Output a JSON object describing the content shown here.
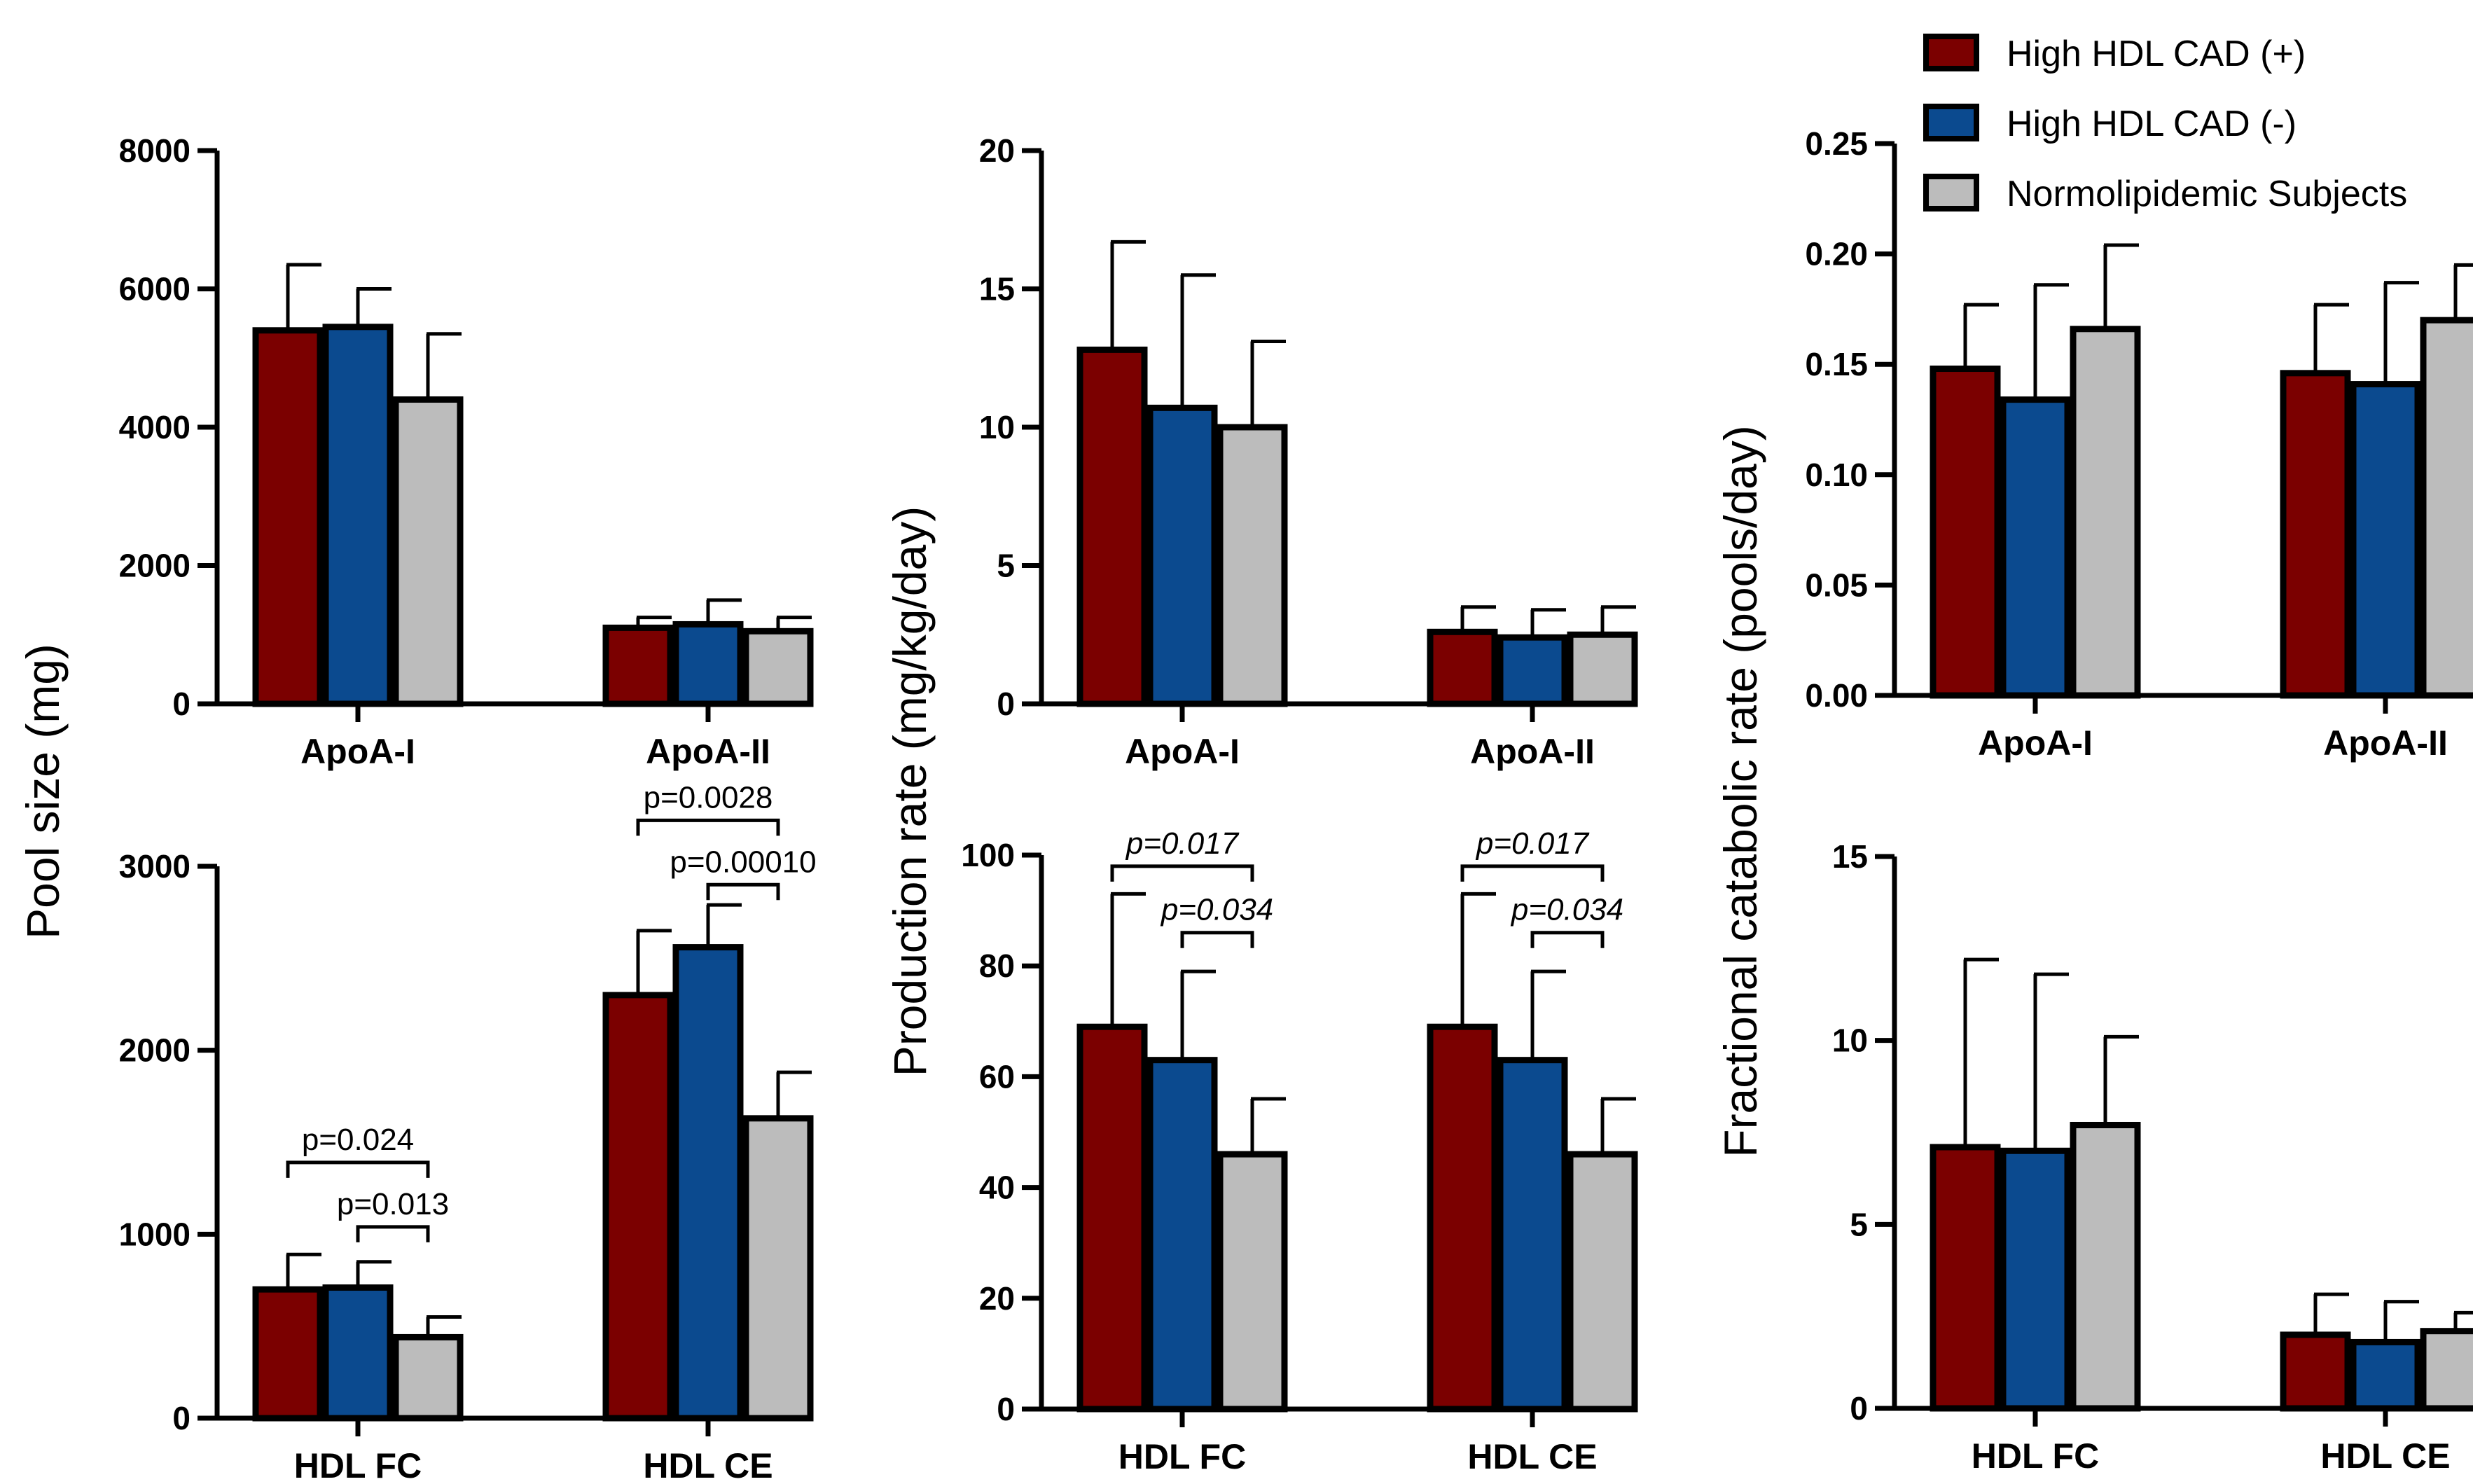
{
  "legend": [
    {
      "label": "High HDL CAD (+)",
      "color": "#7b0000"
    },
    {
      "label": "High HDL CAD (-)",
      "color": "#0b4a8f"
    },
    {
      "label": "Normolipidemic Subjects",
      "color": "#bcbcbc"
    }
  ],
  "y_labels": {
    "pool": "Pool size (mg)",
    "production": "Production rate (mg/kg/day)",
    "fcr": "Fractional catabolic rate (pools/day)"
  },
  "chart_data": [
    {
      "id": "pool-apo",
      "type": "bar",
      "title": "",
      "ylabel": "Pool size (mg)",
      "categories": [
        "ApoA-I",
        "ApoA-II"
      ],
      "ylim": [
        0,
        8000
      ],
      "yticks": [
        0,
        2000,
        4000,
        6000,
        8000
      ],
      "ytick_labels": [
        "0",
        "2000",
        "4000",
        "6000",
        "8000"
      ],
      "series": [
        {
          "name": "High HDL CAD (+)",
          "values": [
            5400,
            1100
          ],
          "errors": [
            950,
            150
          ]
        },
        {
          "name": "High HDL CAD (-)",
          "values": [
            5450,
            1150
          ],
          "errors": [
            550,
            350
          ]
        },
        {
          "name": "Normolipidemic Subjects",
          "values": [
            4400,
            1050
          ],
          "errors": [
            950,
            200
          ]
        }
      ],
      "annotations": []
    },
    {
      "id": "pool-hdl",
      "type": "bar",
      "title": "",
      "ylabel": "Pool size (mg)",
      "categories": [
        "HDL FC",
        "HDL CE"
      ],
      "ylim": [
        0,
        3000
      ],
      "yticks": [
        0,
        1000,
        2000,
        3000
      ],
      "ytick_labels": [
        "0",
        "1000",
        "2000",
        "3000"
      ],
      "series": [
        {
          "name": "High HDL CAD (+)",
          "values": [
            700,
            2300
          ],
          "errors": [
            190,
            350
          ]
        },
        {
          "name": "High HDL CAD (-)",
          "values": [
            710,
            2560
          ],
          "errors": [
            140,
            230
          ]
        },
        {
          "name": "Normolipidemic Subjects",
          "values": [
            440,
            1630
          ],
          "errors": [
            110,
            250
          ]
        }
      ],
      "annotations": [
        {
          "text": "p=0.024",
          "category": 0,
          "from": 0,
          "to": 2,
          "y": 1390,
          "italic": false
        },
        {
          "text": "p=0.013",
          "category": 0,
          "from": 1,
          "to": 2,
          "y": 1040,
          "italic": false
        },
        {
          "text": "p=0.0028",
          "category": 1,
          "from": 0,
          "to": 2,
          "y": 3250,
          "italic": false
        },
        {
          "text": "p=0.00010",
          "category": 1,
          "from": 1,
          "to": 2,
          "y": 2900,
          "italic": false
        }
      ]
    },
    {
      "id": "prod-apo",
      "type": "bar",
      "title": "",
      "ylabel": "Production rate (mg/kg/day)",
      "categories": [
        "ApoA-I",
        "ApoA-II"
      ],
      "ylim": [
        0,
        20
      ],
      "yticks": [
        0,
        5,
        10,
        15,
        20
      ],
      "ytick_labels": [
        "0",
        "5",
        "10",
        "15",
        "20"
      ],
      "series": [
        {
          "name": "High HDL CAD (+)",
          "values": [
            12.8,
            2.6
          ],
          "errors": [
            3.9,
            0.9
          ]
        },
        {
          "name": "High HDL CAD (-)",
          "values": [
            10.7,
            2.4
          ],
          "errors": [
            4.8,
            1.0
          ]
        },
        {
          "name": "Normolipidemic Subjects",
          "values": [
            10.0,
            2.5
          ],
          "errors": [
            3.1,
            1.0
          ]
        }
      ],
      "annotations": []
    },
    {
      "id": "prod-hdl",
      "type": "bar",
      "title": "",
      "ylabel": "Production rate (mg/kg/day)",
      "categories": [
        "HDL FC",
        "HDL CE"
      ],
      "ylim": [
        0,
        100
      ],
      "yticks": [
        0,
        20,
        40,
        60,
        80,
        100
      ],
      "ytick_labels": [
        "0",
        "20",
        "40",
        "60",
        "80",
        "100"
      ],
      "series": [
        {
          "name": "High HDL CAD (+)",
          "values": [
            69,
            69
          ],
          "errors": [
            24,
            24
          ]
        },
        {
          "name": "High HDL CAD (-)",
          "values": [
            63,
            63
          ],
          "errors": [
            16,
            16
          ]
        },
        {
          "name": "Normolipidemic Subjects",
          "values": [
            46,
            46
          ],
          "errors": [
            10,
            10
          ]
        }
      ],
      "annotations": [
        {
          "text": "p=0.017",
          "category": 0,
          "from": 0,
          "to": 2,
          "y": 98,
          "italic": true
        },
        {
          "text": "p=0.034",
          "category": 0,
          "from": 1,
          "to": 2,
          "y": 86,
          "italic": true
        },
        {
          "text": "p=0.017",
          "category": 1,
          "from": 0,
          "to": 2,
          "y": 98,
          "italic": true
        },
        {
          "text": "p=0.034",
          "category": 1,
          "from": 1,
          "to": 2,
          "y": 86,
          "italic": true
        }
      ]
    },
    {
      "id": "fcr-apo",
      "type": "bar",
      "title": "",
      "ylabel": "Fractional catabolic rate (pools/day)",
      "categories": [
        "ApoA-I",
        "ApoA-II"
      ],
      "ylim": [
        0,
        0.25
      ],
      "yticks": [
        0,
        0.05,
        0.1,
        0.15,
        0.2,
        0.25
      ],
      "ytick_labels": [
        "0.00",
        "0.05",
        "0.10",
        "0.15",
        "0.20",
        "0.25"
      ],
      "series": [
        {
          "name": "High HDL CAD (+)",
          "values": [
            0.148,
            0.146
          ],
          "errors": [
            0.029,
            0.031
          ]
        },
        {
          "name": "High HDL CAD (-)",
          "values": [
            0.134,
            0.141
          ],
          "errors": [
            0.052,
            0.046
          ]
        },
        {
          "name": "Normolipidemic Subjects",
          "values": [
            0.166,
            0.17
          ],
          "errors": [
            0.038,
            0.025
          ]
        }
      ],
      "annotations": []
    },
    {
      "id": "fcr-hdl",
      "type": "bar",
      "title": "",
      "ylabel": "Fractional catabolic rate (pools/day)",
      "categories": [
        "HDL FC",
        "HDL CE"
      ],
      "ylim": [
        0,
        15
      ],
      "yticks": [
        0,
        5,
        10,
        15
      ],
      "ytick_labels": [
        "0",
        "5",
        "10",
        "15"
      ],
      "series": [
        {
          "name": "High HDL CAD (+)",
          "values": [
            7.1,
            2.0
          ],
          "errors": [
            5.1,
            1.1
          ]
        },
        {
          "name": "High HDL CAD (-)",
          "values": [
            7.0,
            1.8
          ],
          "errors": [
            4.8,
            1.1
          ]
        },
        {
          "name": "Normolipidemic Subjects",
          "values": [
            7.7,
            2.1
          ],
          "errors": [
            2.4,
            0.5
          ]
        }
      ],
      "annotations": []
    }
  ]
}
